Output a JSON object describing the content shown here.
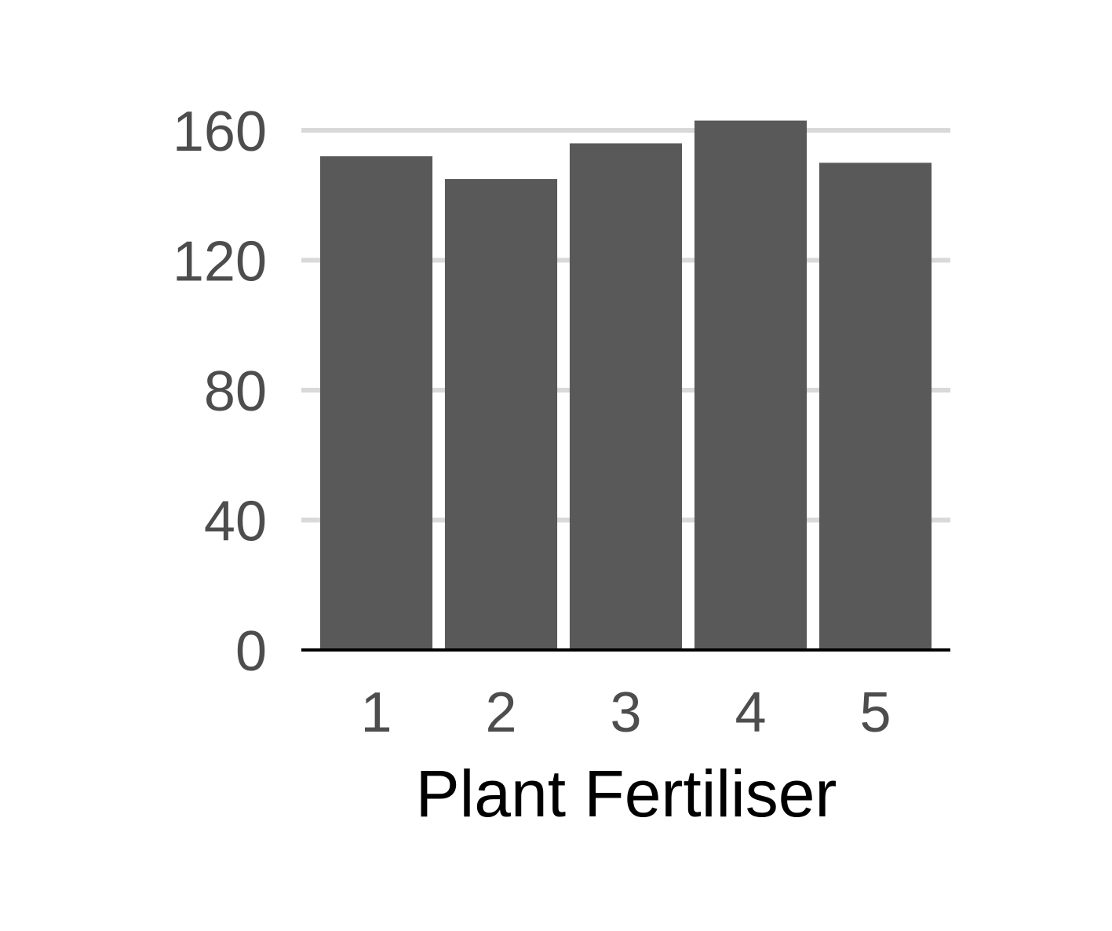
{
  "chart_data": {
    "type": "bar",
    "title": "",
    "xlabel": "Plant Fertiliser",
    "ylabel": "",
    "categories": [
      "1",
      "2",
      "3",
      "4",
      "5"
    ],
    "values": [
      152,
      145,
      156,
      163,
      150
    ],
    "ylim": [
      0,
      160
    ],
    "yticks": [
      0,
      40,
      80,
      120,
      160
    ],
    "grid": "horizontal",
    "legend": "none"
  },
  "colors": {
    "bar": "#595959",
    "grid": "#d9d9d9",
    "axis": "#000000",
    "tick_text": "#4d4d4d",
    "title_text": "#000000",
    "background": "#ffffff"
  }
}
